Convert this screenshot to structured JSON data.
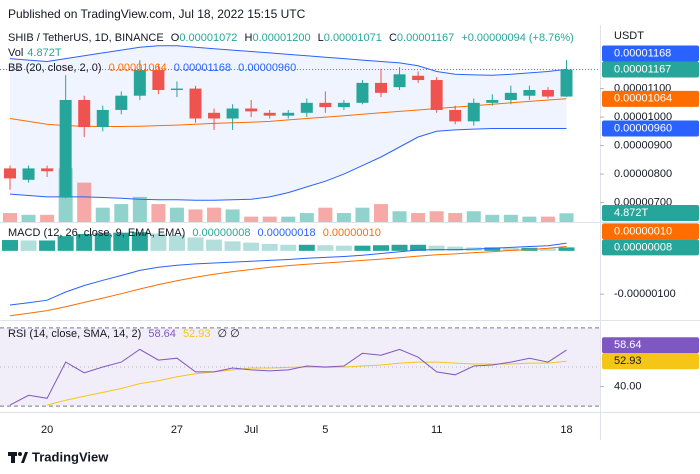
{
  "published": "Published on TradingView.com, Jul 18, 2022 15:15 UTC",
  "footer": "TradingView",
  "chart_data": {
    "type": "candlestick",
    "title": "SHIB / TetherUS, 1D, BINANCE",
    "y_axis_label": "USDT",
    "legend": {
      "open_label": "O",
      "open": "0.00001072",
      "high_label": "H",
      "high": "0.00001200",
      "low_label": "L",
      "low": "0.00001071",
      "close_label": "C",
      "close": "0.00001167",
      "change": "+0.00000094 (+8.76%)"
    },
    "categories": [
      null,
      null,
      "20",
      null,
      null,
      null,
      null,
      null,
      null,
      "27",
      null,
      null,
      null,
      "Jul",
      null,
      null,
      null,
      "5",
      null,
      null,
      null,
      null,
      null,
      "11",
      null,
      null,
      null,
      null,
      null,
      null,
      "18"
    ],
    "open": [
      8.2e-06,
      7.8e-06,
      8.2e-06,
      7.2e-06,
      1.06e-05,
      9.65e-06,
      1.025e-05,
      1.075e-05,
      1.165e-05,
      1.095e-05,
      1.1e-05,
      1.015e-05,
      9.95e-06,
      1.03e-05,
      1.015e-05,
      1.005e-05,
      1.015e-05,
      1.05e-05,
      1.035e-05,
      1.05e-05,
      1.12e-05,
      1.105e-05,
      1.145e-05,
      1.13e-05,
      1.025e-05,
      9.85e-06,
      1.05e-05,
      1.06e-05,
      1.075e-05,
      1.095e-05,
      1.072e-05
    ],
    "high": [
      8.3e-06,
      8.3e-06,
      8.3e-06,
      1.147e-05,
      1.075e-05,
      1.04e-05,
      1.09e-05,
      1.2e-05,
      1.185e-05,
      1.125e-05,
      1.11e-05,
      1.03e-05,
      1.045e-05,
      1.06e-05,
      1.025e-05,
      1.025e-05,
      1.065e-05,
      1.09e-05,
      1.06e-05,
      1.13e-05,
      1.17e-05,
      1.175e-05,
      1.16e-05,
      1.14e-05,
      1.04e-05,
      1.065e-05,
      1.08e-05,
      1.11e-05,
      1.11e-05,
      1.105e-05,
      1.2e-05
    ],
    "low": [
      7.45e-06,
      7.7e-06,
      7.9e-06,
      7.15e-06,
      9.3e-06,
      9.5e-06,
      1.01e-05,
      1.06e-05,
      1.08e-05,
      1.07e-05,
      9.8e-06,
      9.55e-06,
      9.55e-06,
      1e-05,
      9.95e-06,
      9.95e-06,
      1e-05,
      1.015e-05,
      1.025e-05,
      1.045e-05,
      1.07e-05,
      1.095e-05,
      1.12e-05,
      1.015e-05,
      9.75e-06,
      9.7e-06,
      1.04e-05,
      1.045e-05,
      1.06e-05,
      1.065e-05,
      1.071e-05
    ],
    "close": [
      7.85e-06,
      8.2e-06,
      8.1e-06,
      1.06e-05,
      9.65e-06,
      1.025e-05,
      1.075e-05,
      1.165e-05,
      1.095e-05,
      1.1e-05,
      9.95e-06,
      9.95e-06,
      1.03e-05,
      1.02e-05,
      1.005e-05,
      1.015e-05,
      1.05e-05,
      1.035e-05,
      1.05e-05,
      1.12e-05,
      1.085e-05,
      1.15e-05,
      1.13e-05,
      1.025e-05,
      9.85e-06,
      1.05e-05,
      1.06e-05,
      1.085e-05,
      1.095e-05,
      1.072e-05,
      1.167e-05
    ],
    "up_color": "#26a69a",
    "down_color": "#ef5350",
    "ylim": [
      6.32e-06,
      1.323e-05
    ],
    "yticks": [
      {
        "value": 1.1e-05,
        "label": "0.00001100"
      },
      {
        "value": 1e-05,
        "label": "0.00001000"
      },
      {
        "value": 9e-06,
        "label": "0.00000900"
      },
      {
        "value": 8e-06,
        "label": "0.00000800"
      },
      {
        "value": 7e-06,
        "label": "0.00000700"
      }
    ],
    "volume": {
      "name": "Vol",
      "value_label": "4.872T",
      "up_color": "rgba(38,166,154,0.5)",
      "down_color": "rgba(239,83,80,0.5)",
      "vlim": [
        0,
        110
      ],
      "values": [
        5,
        4,
        4,
        30,
        22,
        8,
        10,
        14,
        10,
        8,
        7,
        8,
        7,
        3,
        3,
        3,
        5,
        8,
        5,
        8,
        10,
        6,
        5,
        6,
        5,
        6,
        4,
        4,
        3,
        3,
        4.872
      ]
    },
    "bollinger": {
      "name": "BB (20, close, 2, 0)",
      "fill": "rgba(41,98,255,0.07)",
      "basis": {
        "color": "#ff6d00",
        "value_label": "0.00001064",
        "values": [
          9.95e-06,
          9.85e-06,
          9.75e-06,
          9.7e-06,
          9.68e-06,
          9.67e-06,
          9.67e-06,
          9.68e-06,
          9.7e-06,
          9.72e-06,
          9.75e-06,
          9.78e-06,
          9.8e-06,
          9.82e-06,
          9.85e-06,
          9.9e-06,
          9.95e-06,
          1e-05,
          1.005e-05,
          1.01e-05,
          1.015e-05,
          1.02e-05,
          1.025e-05,
          1.03e-05,
          1.035e-05,
          1.04e-05,
          1.045e-05,
          1.05e-05,
          1.055e-05,
          1.06e-05,
          1.064e-05
        ]
      },
      "upper": {
        "color": "#2962ff",
        "value_label": "0.00001168",
        "values": [
          1.205e-05,
          1.2e-05,
          1.195e-05,
          1.205e-05,
          1.215e-05,
          1.225e-05,
          1.235e-05,
          1.245e-05,
          1.25e-05,
          1.25e-05,
          1.245e-05,
          1.24e-05,
          1.235e-05,
          1.23e-05,
          1.225e-05,
          1.22e-05,
          1.215e-05,
          1.21e-05,
          1.205e-05,
          1.2e-05,
          1.195e-05,
          1.19e-05,
          1.18e-05,
          1.16e-05,
          1.15e-05,
          1.148e-05,
          1.147e-05,
          1.15e-05,
          1.155e-05,
          1.16e-05,
          1.168e-05
        ]
      },
      "lower": {
        "color": "#2962ff",
        "value_label": "0.00000960",
        "values": [
          7.3e-06,
          7.25e-06,
          7.2e-06,
          7.2e-06,
          7.2e-06,
          7.18e-06,
          7.15e-06,
          7.12e-06,
          7.1e-06,
          7.1e-06,
          7.08e-06,
          7.08e-06,
          7.1e-06,
          7.12e-06,
          7.2e-06,
          7.35e-06,
          7.55e-06,
          7.75e-06,
          8e-06,
          8.3e-06,
          8.6e-06,
          8.95e-06,
          9.3e-06,
          9.5e-06,
          9.55e-06,
          9.58e-06,
          9.6e-06,
          9.6e-06,
          9.6e-06,
          9.6e-06,
          9.6e-06
        ]
      }
    },
    "macd": {
      "name": "MACD (12, 26, close, 9, EMA, EMA)",
      "ylim": [
        -1.55e-06,
        6.2e-07
      ],
      "yticks": [
        {
          "value": -1e-06,
          "label": "-0.00000100"
        }
      ],
      "histogram": {
        "value_label": "0.00000008",
        "colors": [
          "#26a69a",
          "#b2dfdb",
          "#ffcdd2",
          "#ff5252"
        ],
        "values": [
          2.5e-07,
          2.4e-07,
          2.4e-07,
          3.4e-07,
          3.9e-07,
          4.1e-07,
          4.2e-07,
          4.3e-07,
          4e-07,
          3.6e-07,
          3.1e-07,
          2.6e-07,
          2.2e-07,
          1.9e-07,
          1.6e-07,
          1.4e-07,
          1.4e-07,
          1.3e-07,
          1.2e-07,
          1.2e-07,
          1.3e-07,
          1.4e-07,
          1.4e-07,
          1.2e-07,
          1e-07,
          8e-08,
          8e-08,
          7e-08,
          7e-08,
          6e-08,
          8e-08
        ]
      },
      "macd": {
        "color": "#2962ff",
        "value_label": "0.00000018",
        "values": [
          -1.25e-06,
          -1.2e-06,
          -1.14e-06,
          -9.5e-07,
          -8e-07,
          -6.8e-07,
          -5.7e-07,
          -4.5e-07,
          -3.8e-07,
          -3.3e-07,
          -3e-07,
          -2.8e-07,
          -2.6e-07,
          -2.4e-07,
          -2.2e-07,
          -2e-07,
          -1.7e-07,
          -1.5e-07,
          -1.3e-07,
          -1e-07,
          -6e-08,
          -2e-08,
          2e-08,
          3e-08,
          3e-08,
          4e-08,
          6e-08,
          8e-08,
          1e-07,
          1.2e-07,
          1.8e-07
        ]
      },
      "signal": {
        "color": "#ff6d00",
        "value_label": "0.00000010",
        "values": [
          -1.5e-06,
          -1.44e-06,
          -1.38e-06,
          -1.29e-06,
          -1.19e-06,
          -1.09e-06,
          -9.9e-07,
          -8.8e-07,
          -7.8e-07,
          -6.9e-07,
          -6.1e-07,
          -5.4e-07,
          -4.8e-07,
          -4.3e-07,
          -3.8e-07,
          -3.4e-07,
          -3.1e-07,
          -2.8e-07,
          -2.5e-07,
          -2.2e-07,
          -1.9e-07,
          -1.6e-07,
          -1.2e-07,
          -9e-08,
          -7e-08,
          -4e-08,
          -2e-08,
          1e-08,
          3e-08,
          6e-08,
          1e-07
        ]
      }
    },
    "rsi": {
      "name": "RSI (14, close, SMA, 14, 2)",
      "suffix": "∅ ∅",
      "ylim": [
        28,
        73
      ],
      "yticks": [
        {
          "value": 40,
          "label": "40.00"
        }
      ],
      "bands": [
        70,
        30
      ],
      "middle": 50,
      "band_fill": "rgba(126,87,194,0.1)",
      "rsi": {
        "color": "#7e57c2",
        "values": [
          30.5,
          35.5,
          34,
          52.5,
          47,
          50,
          52.5,
          59,
          53.5,
          54.5,
          47.5,
          47.5,
          49.5,
          48.5,
          48,
          48.5,
          50.5,
          50,
          50.5,
          57,
          56,
          59,
          55,
          47.5,
          46,
          50.5,
          51,
          52.5,
          54.5,
          52.5,
          58.64
        ]
      },
      "sma": {
        "color": "#f5c518",
        "values": [
          null,
          null,
          30.5,
          33,
          35,
          37,
          39,
          41.5,
          43,
          45,
          46.5,
          47.5,
          48.5,
          49.5,
          49.5,
          49.8,
          50,
          49.8,
          50,
          50.5,
          51,
          52,
          52.5,
          52.5,
          52,
          51.5,
          51.5,
          51.5,
          52,
          52,
          52.93
        ]
      }
    }
  }
}
